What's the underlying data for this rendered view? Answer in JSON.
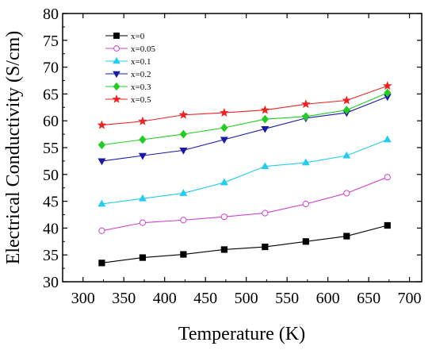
{
  "chart_data": {
    "type": "line",
    "xlabel": "Temperature (K)",
    "ylabel": "Electrical Conductivity (S/cm)",
    "xlim": [
      275,
      715
    ],
    "ylim": [
      30,
      80
    ],
    "xticks": [
      300,
      350,
      400,
      450,
      500,
      550,
      600,
      650,
      700
    ],
    "yticks": [
      30,
      35,
      40,
      45,
      50,
      55,
      60,
      65,
      70,
      75,
      80
    ],
    "legend_position": "top-left",
    "grid": false,
    "x": [
      323,
      373,
      423,
      473,
      523,
      573,
      623,
      673
    ],
    "series": [
      {
        "name": "x=0",
        "color": "#000000",
        "marker": "square",
        "filled": true,
        "values": [
          33.5,
          34.5,
          35.1,
          36.0,
          36.5,
          37.5,
          38.5,
          40.5
        ]
      },
      {
        "name": "x=0.05",
        "color": "#cc44cc",
        "marker": "circle",
        "filled": false,
        "values": [
          39.5,
          41.0,
          41.5,
          42.1,
          42.8,
          44.5,
          46.5,
          49.5
        ]
      },
      {
        "name": "x=0.1",
        "color": "#22ccee",
        "marker": "triangle-up",
        "filled": true,
        "values": [
          44.5,
          45.5,
          46.5,
          48.5,
          51.5,
          52.2,
          53.5,
          56.5
        ]
      },
      {
        "name": "x=0.2",
        "color": "#1a1aa8",
        "marker": "triangle-down",
        "filled": true,
        "values": [
          52.5,
          53.5,
          54.5,
          56.5,
          58.5,
          60.5,
          61.5,
          64.5
        ]
      },
      {
        "name": "x=0.3",
        "color": "#22cc22",
        "marker": "diamond",
        "filled": true,
        "values": [
          55.5,
          56.5,
          57.5,
          58.7,
          60.3,
          60.8,
          62.0,
          65.2
        ]
      },
      {
        "name": "x=0.5",
        "color": "#ee2222",
        "marker": "star",
        "filled": true,
        "values": [
          59.2,
          59.9,
          61.1,
          61.5,
          62.0,
          63.1,
          63.8,
          66.5
        ]
      }
    ]
  }
}
